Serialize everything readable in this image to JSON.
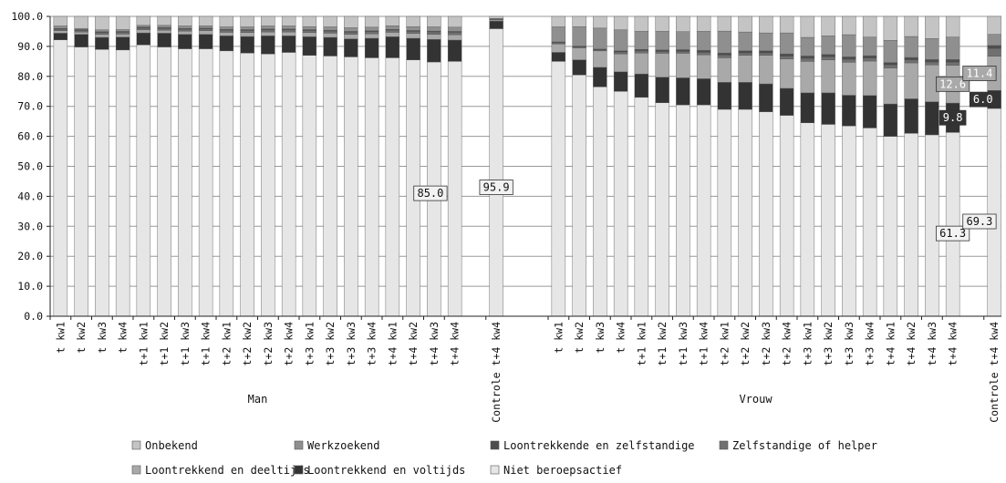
{
  "chart_data": {
    "type": "bar",
    "stacked": true,
    "ylim": [
      0,
      100
    ],
    "yticks": [
      "0.0",
      "10.0",
      "20.0",
      "30.0",
      "40.0",
      "50.0",
      "60.0",
      "70.0",
      "80.0",
      "90.0",
      "100.0"
    ],
    "grid": true,
    "legend_position": "bottom",
    "group_labels": [
      "Man",
      "Vrouw"
    ],
    "legend_order": [
      "Onbekend",
      "Werkzoekend",
      "Loontrekkende en zelfstandige",
      "Zelfstandige of helper",
      "Loontrekkend en deeltijds",
      "Loontrekkend en voltijds",
      "Niet beroepsactief"
    ],
    "series": [
      {
        "name": "Niet beroepsactief",
        "color": "#e6e6e6"
      },
      {
        "name": "Loontrekkend en voltijds",
        "color": "#333333"
      },
      {
        "name": "Loontrekkend en deeltijds",
        "color": "#a9a9a9"
      },
      {
        "name": "Zelfstandige of helper",
        "color": "#707070"
      },
      {
        "name": "Loontrekkende en zelfstandige",
        "color": "#4d4d4d"
      },
      {
        "name": "Werkzoekend",
        "color": "#8f8f8f"
      },
      {
        "name": "Onbekend",
        "color": "#c4c4c4"
      }
    ],
    "bars": [
      {
        "label": "t kw1",
        "group": "Man",
        "values": [
          92.2,
          2.2,
          0.8,
          0.5,
          0.3,
          0.8,
          3.2
        ]
      },
      {
        "label": "t kw2",
        "group": "Man",
        "values": [
          89.8,
          4.2,
          0.8,
          0.5,
          0.3,
          0.4,
          4.0
        ]
      },
      {
        "label": "t kw3",
        "group": "Man",
        "values": [
          89.0,
          4.0,
          1.0,
          0.6,
          0.3,
          0.6,
          4.5
        ]
      },
      {
        "label": "t kw4",
        "group": "Man",
        "values": [
          88.8,
          4.3,
          1.0,
          0.6,
          0.3,
          0.6,
          4.4
        ]
      },
      {
        "label": "t+1 kw1",
        "group": "Man",
        "values": [
          90.5,
          4.0,
          1.0,
          0.6,
          0.3,
          0.6,
          3.0
        ]
      },
      {
        "label": "t+1 kw2",
        "group": "Man",
        "values": [
          89.8,
          4.6,
          1.0,
          0.6,
          0.3,
          0.7,
          3.0
        ]
      },
      {
        "label": "t+1 kw3",
        "group": "Man",
        "values": [
          89.2,
          4.8,
          1.1,
          0.6,
          0.3,
          0.8,
          3.2
        ]
      },
      {
        "label": "t+1 kw4",
        "group": "Man",
        "values": [
          89.2,
          4.8,
          1.2,
          0.6,
          0.3,
          0.8,
          3.1
        ]
      },
      {
        "label": "t+2 kw1",
        "group": "Man",
        "values": [
          88.5,
          5.0,
          1.2,
          0.7,
          0.3,
          0.8,
          3.5
        ]
      },
      {
        "label": "t+2 kw2",
        "group": "Man",
        "values": [
          87.8,
          5.5,
          1.3,
          0.7,
          0.3,
          0.9,
          3.5
        ]
      },
      {
        "label": "t+2 kw3",
        "group": "Man",
        "values": [
          87.5,
          6.0,
          1.3,
          0.7,
          0.3,
          1.0,
          3.2
        ]
      },
      {
        "label": "t+2 kw4",
        "group": "Man",
        "values": [
          88.0,
          5.5,
          1.3,
          0.7,
          0.3,
          1.0,
          3.2
        ]
      },
      {
        "label": "t+3 kw1",
        "group": "Man",
        "values": [
          87.0,
          6.2,
          1.4,
          0.7,
          0.3,
          1.0,
          3.4
        ]
      },
      {
        "label": "t+3 kw2",
        "group": "Man",
        "values": [
          86.8,
          6.2,
          1.4,
          0.7,
          0.3,
          1.1,
          3.5
        ]
      },
      {
        "label": "t+3 kw3",
        "group": "Man",
        "values": [
          86.5,
          6.0,
          1.5,
          0.7,
          0.3,
          1.2,
          3.8
        ]
      },
      {
        "label": "t+3 kw4",
        "group": "Man",
        "values": [
          86.2,
          6.5,
          1.5,
          0.7,
          0.3,
          1.2,
          3.6
        ]
      },
      {
        "label": "t+4 kw1",
        "group": "Man",
        "values": [
          86.2,
          7.0,
          1.5,
          0.7,
          0.3,
          1.2,
          3.1
        ]
      },
      {
        "label": "t+4 kw2",
        "group": "Man",
        "values": [
          85.5,
          7.2,
          1.6,
          0.7,
          0.3,
          1.3,
          3.4
        ]
      },
      {
        "label": "t+4 kw3",
        "group": "Man",
        "values": [
          84.8,
          7.5,
          1.7,
          0.8,
          0.3,
          1.4,
          3.5
        ]
      },
      {
        "label": "t+4 kw4",
        "group": "Man",
        "values": [
          85.0,
          7.1,
          1.8,
          0.8,
          0.3,
          1.4,
          3.6
        ]
      },
      {
        "label": "Controle t+4 kw4",
        "group": "",
        "values": [
          95.9,
          2.5,
          0.4,
          0.2,
          0.1,
          0.2,
          0.7
        ]
      },
      {
        "label": "t kw1",
        "group": "Vrouw",
        "values": [
          85.0,
          3.0,
          2.8,
          0.4,
          0.3,
          5.0,
          3.5
        ]
      },
      {
        "label": "t kw2",
        "group": "Vrouw",
        "values": [
          80.5,
          5.0,
          4.0,
          0.3,
          0.3,
          6.5,
          3.4
        ]
      },
      {
        "label": "t kw3",
        "group": "Vrouw",
        "values": [
          76.5,
          6.5,
          5.5,
          0.3,
          0.3,
          7.0,
          3.9
        ]
      },
      {
        "label": "t kw4",
        "group": "Vrouw",
        "values": [
          75.0,
          6.5,
          6.0,
          0.6,
          0.4,
          7.0,
          4.5
        ]
      },
      {
        "label": "t+1 kw1",
        "group": "Vrouw",
        "values": [
          73.0,
          7.8,
          7.0,
          0.7,
          0.5,
          6.0,
          5.0
        ]
      },
      {
        "label": "t+1 kw2",
        "group": "Vrouw",
        "values": [
          71.2,
          8.5,
          8.0,
          0.6,
          0.5,
          6.2,
          5.0
        ]
      },
      {
        "label": "t+1 kw3",
        "group": "Vrouw",
        "values": [
          70.5,
          9.0,
          8.2,
          0.6,
          0.6,
          6.0,
          5.1
        ]
      },
      {
        "label": "t+1 kw4",
        "group": "Vrouw",
        "values": [
          70.5,
          8.7,
          8.0,
          0.8,
          0.7,
          6.3,
          5.0
        ]
      },
      {
        "label": "t+2 kw1",
        "group": "Vrouw",
        "values": [
          69.0,
          9.0,
          8.2,
          0.9,
          0.7,
          7.3,
          4.9
        ]
      },
      {
        "label": "t+2 kw2",
        "group": "Vrouw",
        "values": [
          69.0,
          9.0,
          9.0,
          0.8,
          0.7,
          6.3,
          5.2
        ]
      },
      {
        "label": "t+2 kw3",
        "group": "Vrouw",
        "values": [
          68.2,
          9.3,
          9.5,
          0.8,
          0.7,
          6.0,
          5.5
        ]
      },
      {
        "label": "t+2 kw4",
        "group": "Vrouw",
        "values": [
          67.0,
          9.0,
          9.8,
          0.9,
          0.8,
          7.0,
          5.5
        ]
      },
      {
        "label": "t+3 kw1",
        "group": "Vrouw",
        "values": [
          64.5,
          10.0,
          10.5,
          1.0,
          0.8,
          6.2,
          7.0
        ]
      },
      {
        "label": "t+3 kw2",
        "group": "Vrouw",
        "values": [
          64.0,
          10.5,
          11.0,
          1.0,
          0.8,
          6.2,
          6.5
        ]
      },
      {
        "label": "t+3 kw3",
        "group": "Vrouw",
        "values": [
          63.5,
          10.2,
          11.0,
          1.0,
          0.8,
          7.4,
          6.1
        ]
      },
      {
        "label": "t+3 kw4",
        "group": "Vrouw",
        "values": [
          62.8,
          10.8,
          11.5,
          1.0,
          0.8,
          6.2,
          6.9
        ]
      },
      {
        "label": "t+4 kw1",
        "group": "Vrouw",
        "values": [
          60.0,
          10.8,
          12.0,
          1.0,
          0.8,
          7.4,
          8.0
        ]
      },
      {
        "label": "t+4 kw2",
        "group": "Vrouw",
        "values": [
          61.0,
          11.5,
          12.0,
          1.0,
          0.8,
          7.0,
          6.7
        ]
      },
      {
        "label": "t+4 kw3",
        "group": "Vrouw",
        "values": [
          60.5,
          11.0,
          12.3,
          1.0,
          0.8,
          7.0,
          7.4
        ]
      },
      {
        "label": "t+4 kw4",
        "group": "Vrouw",
        "values": [
          61.3,
          9.8,
          12.6,
          1.0,
          0.9,
          7.5,
          6.9
        ]
      },
      {
        "label": "Controle t+4 kw4",
        "group": "",
        "values": [
          69.3,
          6.0,
          11.4,
          2.6,
          1.0,
          3.7,
          6.0
        ]
      }
    ],
    "annotations": [
      {
        "bar": 19,
        "series": 0,
        "text": "85.0"
      },
      {
        "bar": 20,
        "series": 0,
        "text": "95.9"
      },
      {
        "bar": 40,
        "series": 0,
        "text": "61.3"
      },
      {
        "bar": 40,
        "series": 1,
        "text": "9.8"
      },
      {
        "bar": 40,
        "series": 2,
        "text": "12.6"
      },
      {
        "bar": 41,
        "series": 0,
        "text": "69.3"
      },
      {
        "bar": 41,
        "series": 1,
        "text": "6.0"
      },
      {
        "bar": 41,
        "series": 2,
        "text": "11.4"
      }
    ]
  }
}
